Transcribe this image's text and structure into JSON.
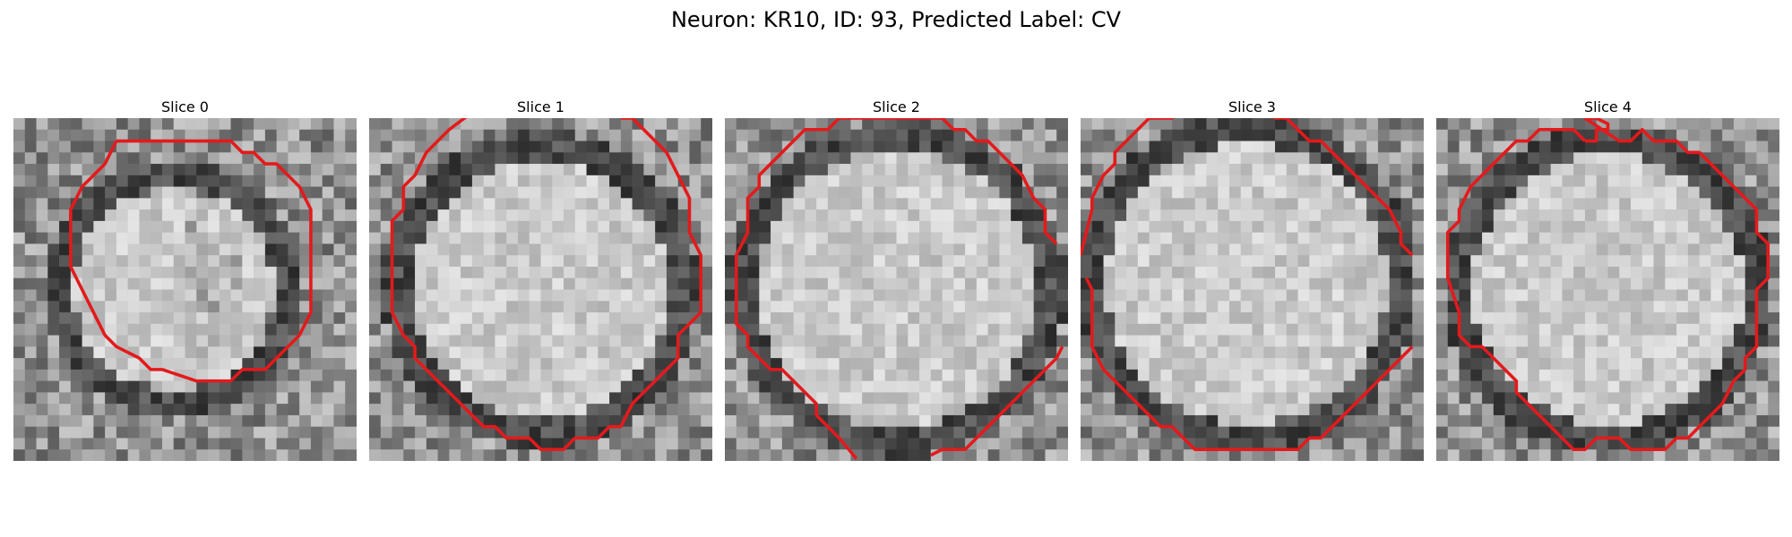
{
  "figure": {
    "title": "Neuron: KR10, ID: 93, Predicted Label: CV",
    "contour_color": "#e31a1c"
  },
  "panels": [
    {
      "title": "Slice 0",
      "image": "grayscale EM crop with red cell boundary contour"
    },
    {
      "title": "Slice 1",
      "image": "grayscale EM crop with red cell boundary contour"
    },
    {
      "title": "Slice 2",
      "image": "grayscale EM crop with red cell boundary contour"
    },
    {
      "title": "Slice 3",
      "image": "grayscale EM crop with red cell boundary contour"
    },
    {
      "title": "Slice 4",
      "image": "grayscale EM crop with red cell boundary contour"
    }
  ]
}
